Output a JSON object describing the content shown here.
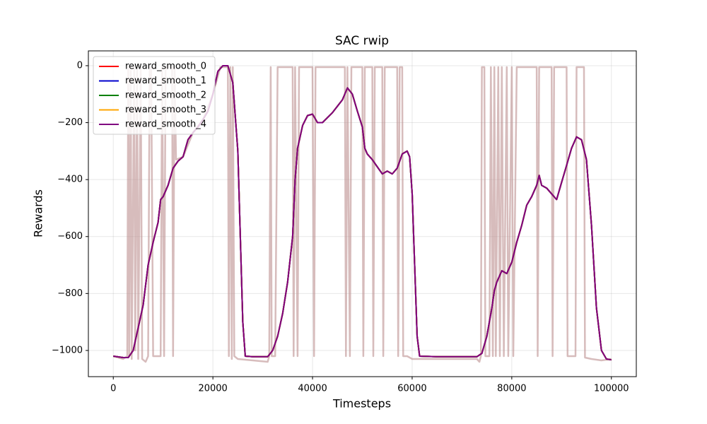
{
  "chart_data": {
    "type": "line",
    "title": "SAC rwip",
    "xlabel": "Timesteps",
    "ylabel": "Rewards",
    "xlim": [
      -5000,
      105000
    ],
    "ylim": [
      -1092,
      52
    ],
    "xticks": [
      0,
      20000,
      40000,
      60000,
      80000,
      100000
    ],
    "yticks": [
      {
        "value": -1000,
        "label": "−1000"
      },
      {
        "value": -800,
        "label": "−800"
      },
      {
        "value": -600,
        "label": "−600"
      },
      {
        "value": -400,
        "label": "−400"
      },
      {
        "value": -200,
        "label": "−200"
      },
      0
    ],
    "grid": true,
    "legend": "upper left",
    "x": [
      0,
      2000,
      3000,
      4000,
      5000,
      6000,
      7000,
      8000,
      9000,
      9500,
      10000,
      11000,
      12000,
      13000,
      14000,
      15000,
      16000,
      17000,
      18000,
      19000,
      20000,
      21000,
      22000,
      23000,
      24000,
      25000,
      25500,
      26000,
      26500,
      28000,
      31000,
      32000,
      33000,
      34000,
      35000,
      36000,
      36500,
      37000,
      38000,
      39000,
      40000,
      41000,
      42000,
      44000,
      46000,
      47000,
      48000,
      49000,
      50000,
      50500,
      51000,
      52000,
      53000,
      54000,
      55000,
      56000,
      57000,
      58000,
      59000,
      59500,
      60000,
      60500,
      61000,
      61500,
      65000,
      73000,
      74000,
      75000,
      76000,
      76500,
      77000,
      78000,
      79000,
      80000,
      81000,
      82000,
      83000,
      84000,
      85000,
      85500,
      86000,
      87000,
      88000,
      89000,
      90000,
      91000,
      92000,
      93000,
      94000,
      95000,
      96000,
      97000,
      98000,
      99000,
      100000
    ],
    "series": [
      {
        "color": "#bc8f8f",
        "x": [
          0,
          2000,
          2800,
          3000,
          3200,
          3500,
          3700,
          4200,
          4400,
          4800,
          5000,
          5500,
          5800,
          6500,
          7000,
          7300,
          7600,
          8000,
          9500,
          9800,
          10200,
          10500,
          11800,
          12000,
          12300,
          12600,
          14000,
          16000,
          18000,
          20000,
          21500,
          23000,
          23200,
          23500,
          23800,
          24000,
          24300,
          25000,
          31000,
          31300,
          31600,
          31800,
          32500,
          33000,
          36000,
          36200,
          36500,
          37000,
          37300,
          40000,
          40300,
          40600,
          46500,
          46700,
          47000,
          47500,
          47800,
          50000,
          50200,
          50500,
          52000,
          52200,
          52500,
          54000,
          54200,
          54500,
          57000,
          57200,
          57500,
          58000,
          58200,
          59000,
          60000,
          73000,
          73500,
          73800,
          74000,
          74500,
          74700,
          75500,
          75800,
          76200,
          76500,
          76800,
          77300,
          77600,
          78000,
          78400,
          79000,
          79300,
          80000,
          80300,
          81000,
          85000,
          85200,
          85500,
          88000,
          88200,
          88500,
          91000,
          91200,
          92800,
          93000,
          94500,
          94700,
          96000,
          98000,
          100000
        ],
        "values": [
          -1020,
          -1030,
          -1020,
          -5,
          -1020,
          -5,
          -1030,
          -5,
          -1000,
          -5,
          -1030,
          -5,
          -1030,
          -1040,
          -1020,
          -5,
          -5,
          -1020,
          -1020,
          -5,
          -1020,
          -5,
          -5,
          -1020,
          -5,
          -330,
          -320,
          -235,
          -190,
          -100,
          -5,
          -5,
          -1020,
          -5,
          -1030,
          -5,
          -1020,
          -1030,
          -1040,
          -1020,
          -5,
          -1020,
          -1020,
          -5,
          -5,
          -1020,
          -5,
          -1020,
          -5,
          -5,
          -1020,
          -5,
          -5,
          -1020,
          -5,
          -1020,
          -5,
          -5,
          -1020,
          -5,
          -5,
          -1020,
          -5,
          -5,
          -1020,
          -5,
          -5,
          -1020,
          -5,
          -5,
          -1020,
          -1020,
          -1030,
          -1030,
          -1040,
          -1020,
          -5,
          -5,
          -1020,
          -1020,
          -5,
          -1020,
          -5,
          -1020,
          -5,
          -1020,
          -5,
          -1020,
          -5,
          -1020,
          -5,
          -1020,
          -5,
          -5,
          -1020,
          -5,
          -5,
          -1020,
          -5,
          -5,
          -1020,
          -1020,
          -5,
          -5,
          -1025,
          -1030,
          -1035,
          -1030
        ]
      },
      {
        "name": "reward_smooth_0",
        "color": "#ff0000",
        "values": [
          -1020,
          -1025,
          -1025,
          -1000,
          -920,
          -840,
          -700,
          -620,
          -550,
          -470,
          -460,
          -420,
          -360,
          -335,
          -320,
          -260,
          -235,
          -215,
          -190,
          -160,
          -100,
          -20,
          0,
          0,
          -60,
          -300,
          -600,
          -900,
          -1020,
          -1022,
          -1022,
          -1000,
          -950,
          -870,
          -760,
          -600,
          -400,
          -290,
          -210,
          -175,
          -170,
          -200,
          -200,
          -165,
          -120,
          -78,
          -100,
          -160,
          -215,
          -290,
          -310,
          -330,
          -355,
          -380,
          -370,
          -380,
          -360,
          -310,
          -300,
          -320,
          -450,
          -700,
          -950,
          -1020,
          -1022,
          -1022,
          -1010,
          -950,
          -850,
          -790,
          -760,
          -720,
          -730,
          -690,
          -620,
          -560,
          -490,
          -460,
          -420,
          -385,
          -420,
          -430,
          -450,
          -470,
          -410,
          -350,
          -290,
          -250,
          -260,
          -330,
          -560,
          -850,
          -1000,
          -1030,
          -1033
        ]
      },
      {
        "name": "reward_smooth_1",
        "color": "#0000cd",
        "values": [
          -1020,
          -1025,
          -1025,
          -1000,
          -920,
          -840,
          -700,
          -620,
          -550,
          -470,
          -460,
          -420,
          -360,
          -335,
          -320,
          -260,
          -235,
          -215,
          -190,
          -160,
          -100,
          -20,
          0,
          0,
          -60,
          -300,
          -600,
          -900,
          -1020,
          -1022,
          -1022,
          -1000,
          -950,
          -870,
          -760,
          -600,
          -400,
          -290,
          -210,
          -175,
          -170,
          -200,
          -200,
          -165,
          -120,
          -78,
          -100,
          -160,
          -215,
          -290,
          -310,
          -330,
          -355,
          -380,
          -370,
          -380,
          -360,
          -310,
          -300,
          -320,
          -450,
          -700,
          -950,
          -1020,
          -1022,
          -1022,
          -1010,
          -950,
          -850,
          -790,
          -760,
          -720,
          -730,
          -690,
          -620,
          -560,
          -490,
          -460,
          -420,
          -385,
          -420,
          -430,
          -450,
          -470,
          -410,
          -350,
          -290,
          -250,
          -260,
          -330,
          -560,
          -850,
          -1000,
          -1030,
          -1033
        ]
      },
      {
        "name": "reward_smooth_2",
        "color": "#008000",
        "values": [
          -1020,
          -1025,
          -1025,
          -1000,
          -920,
          -840,
          -700,
          -620,
          -550,
          -470,
          -460,
          -420,
          -360,
          -335,
          -320,
          -260,
          -235,
          -215,
          -190,
          -160,
          -100,
          -20,
          0,
          0,
          -60,
          -300,
          -600,
          -900,
          -1020,
          -1022,
          -1022,
          -1000,
          -950,
          -870,
          -760,
          -600,
          -400,
          -290,
          -210,
          -175,
          -170,
          -200,
          -200,
          -165,
          -120,
          -78,
          -100,
          -160,
          -215,
          -290,
          -310,
          -330,
          -355,
          -380,
          -370,
          -380,
          -360,
          -310,
          -300,
          -320,
          -450,
          -700,
          -950,
          -1020,
          -1022,
          -1022,
          -1010,
          -950,
          -850,
          -790,
          -760,
          -720,
          -730,
          -690,
          -620,
          -560,
          -490,
          -460,
          -420,
          -385,
          -420,
          -430,
          -450,
          -470,
          -410,
          -350,
          -290,
          -250,
          -260,
          -330,
          -560,
          -850,
          -1000,
          -1030,
          -1033
        ]
      },
      {
        "name": "reward_smooth_3",
        "color": "#ffa500",
        "values": [
          -1020,
          -1025,
          -1025,
          -1000,
          -920,
          -840,
          -700,
          -620,
          -550,
          -470,
          -460,
          -420,
          -360,
          -335,
          -320,
          -260,
          -235,
          -215,
          -190,
          -160,
          -100,
          -20,
          0,
          0,
          -60,
          -300,
          -600,
          -900,
          -1020,
          -1022,
          -1022,
          -1000,
          -950,
          -870,
          -760,
          -600,
          -400,
          -290,
          -210,
          -175,
          -170,
          -200,
          -200,
          -165,
          -120,
          -78,
          -100,
          -160,
          -215,
          -290,
          -310,
          -330,
          -355,
          -380,
          -370,
          -380,
          -360,
          -310,
          -300,
          -320,
          -450,
          -700,
          -950,
          -1020,
          -1022,
          -1022,
          -1010,
          -950,
          -850,
          -790,
          -760,
          -720,
          -730,
          -690,
          -620,
          -560,
          -490,
          -460,
          -420,
          -385,
          -420,
          -430,
          -450,
          -470,
          -410,
          -350,
          -290,
          -250,
          -260,
          -330,
          -560,
          -850,
          -1000,
          -1030,
          -1033
        ]
      },
      {
        "name": "reward_smooth_4",
        "color": "#800080",
        "values": [
          -1020,
          -1025,
          -1025,
          -1000,
          -920,
          -840,
          -700,
          -620,
          -550,
          -470,
          -460,
          -420,
          -360,
          -335,
          -320,
          -260,
          -235,
          -215,
          -190,
          -160,
          -100,
          -20,
          0,
          0,
          -60,
          -300,
          -600,
          -900,
          -1020,
          -1022,
          -1022,
          -1000,
          -950,
          -870,
          -760,
          -600,
          -400,
          -290,
          -210,
          -175,
          -170,
          -200,
          -200,
          -165,
          -120,
          -78,
          -100,
          -160,
          -215,
          -290,
          -310,
          -330,
          -355,
          -380,
          -370,
          -380,
          -360,
          -310,
          -300,
          -320,
          -450,
          -700,
          -950,
          -1020,
          -1022,
          -1022,
          -1010,
          -950,
          -850,
          -790,
          -760,
          -720,
          -730,
          -690,
          -620,
          -560,
          -490,
          -460,
          -420,
          -385,
          -420,
          -430,
          -450,
          -470,
          -410,
          -350,
          -290,
          -250,
          -260,
          -330,
          -560,
          -850,
          -1000,
          -1030,
          -1033
        ]
      }
    ]
  }
}
